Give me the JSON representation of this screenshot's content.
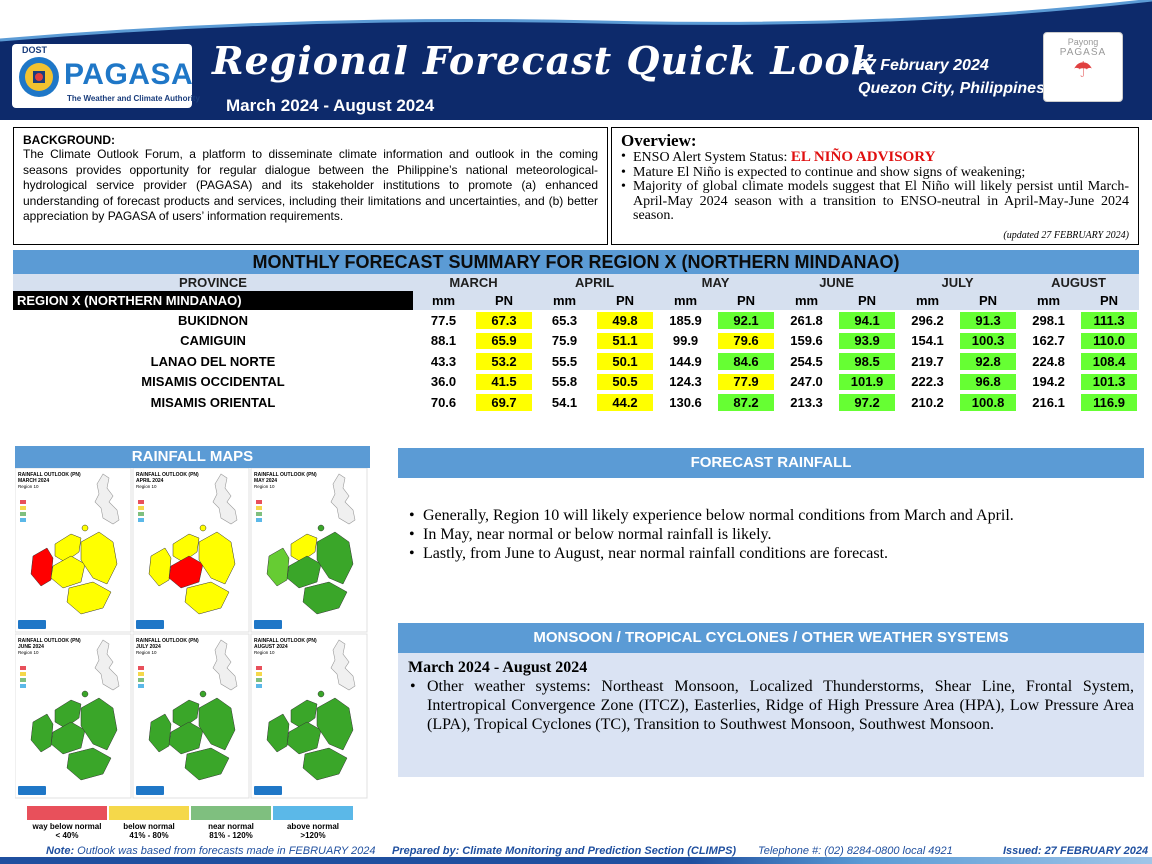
{
  "header": {
    "agency_short": "DOST",
    "agency": "PAGASA",
    "agency_tagline": "The Weather and Climate Authority",
    "title": "Regional Forecast Quick Look",
    "period": "March 2024 - August 2024",
    "issue_date": "27 February 2024",
    "location": "Quezon City, Philippines",
    "payong_line1": "Payong",
    "payong_line2": "PAGASA"
  },
  "background": {
    "heading": "BACKGROUND:",
    "text": "The Climate Outlook Forum, a platform to disseminate climate information and outlook in the coming seasons provides opportunity for regular dialogue between the Philippine’s national meteorological-hydrological service provider (PAGASA) and its stakeholder institutions to promote (a) enhanced understanding of forecast products and services, including their limitations and uncertainties, and (b) better appreciation by PAGASA of users’ information requirements."
  },
  "overview": {
    "heading": "Overview:",
    "enso_label": "ENSO Alert System Status: ",
    "enso_status": "EL NIÑO ADVISORY",
    "bullet2": "Mature El Niño is expected to continue and show signs of weakening;",
    "bullet3": "Majority of global climate models suggest that El Niño will likely persist until March-April-May 2024 season with a transition to ENSO-neutral in April-May-June 2024 season.",
    "updated": "(updated 27 FEBRUARY 2024)"
  },
  "forecast_table": {
    "title": "MONTHLY FORECAST SUMMARY FOR REGION X (NORTHERN MINDANAO)",
    "province_header": "PROVINCE",
    "region_label": "REGION X (NORTHERN MINDANAO)",
    "months": [
      "MARCH",
      "APRIL",
      "MAY",
      "JUNE",
      "JULY",
      "AUGUST"
    ],
    "sub_mm": "mm",
    "sub_pn": "PN",
    "rows": [
      {
        "province": "BUKIDNON",
        "values": [
          "77.5",
          "67.3",
          "65.3",
          "49.8",
          "185.9",
          "92.1",
          "261.8",
          "94.1",
          "296.2",
          "91.3",
          "298.1",
          "111.3"
        ]
      },
      {
        "province": "CAMIGUIN",
        "values": [
          "88.1",
          "65.9",
          "75.9",
          "51.1",
          "99.9",
          "79.6",
          "159.6",
          "93.9",
          "154.1",
          "100.3",
          "162.7",
          "110.0"
        ]
      },
      {
        "province": "LANAO DEL NORTE",
        "values": [
          "43.3",
          "53.2",
          "55.5",
          "50.1",
          "144.9",
          "84.6",
          "254.5",
          "98.5",
          "219.7",
          "92.8",
          "224.8",
          "108.4"
        ]
      },
      {
        "province": "MISAMIS OCCIDENTAL",
        "values": [
          "36.0",
          "41.5",
          "55.8",
          "50.5",
          "124.3",
          "77.9",
          "247.0",
          "101.9",
          "222.3",
          "96.8",
          "194.2",
          "101.3"
        ]
      },
      {
        "province": "MISAMIS ORIENTAL",
        "values": [
          "70.6",
          "69.7",
          "54.1",
          "44.2",
          "130.6",
          "87.2",
          "213.3",
          "97.2",
          "210.2",
          "100.8",
          "216.1",
          "116.9"
        ]
      }
    ],
    "pn_colors": {
      "below_normal": "#ffff00",
      "near_normal": "#66ff33"
    }
  },
  "rainfall_maps": {
    "title": "RAINFALL MAPS",
    "panels": [
      {
        "caption": "RAINFALL OUTLOOK (PN)",
        "month": "MARCH 2024"
      },
      {
        "caption": "RAINFALL OUTLOOK (PN)",
        "month": "APRIL 2024"
      },
      {
        "caption": "RAINFALL OUTLOOK (PN)",
        "month": "MAY 2024"
      },
      {
        "caption": "RAINFALL OUTLOOK (PN)",
        "month": "JUNE 2024"
      },
      {
        "caption": "RAINFALL OUTLOOK (PN)",
        "month": "JULY 2024"
      },
      {
        "caption": "RAINFALL OUTLOOK (PN)",
        "month": "AUGUST 2024"
      }
    ],
    "region_label": "Region 10",
    "legend": [
      {
        "label": "way below normal",
        "range": "< 40%",
        "color": "#e8505b"
      },
      {
        "label": "below normal",
        "range": "41% - 80%",
        "color": "#f5d84a"
      },
      {
        "label": "near normal",
        "range": "81% - 120%",
        "color": "#7fbf7f"
      },
      {
        "label": "above normal",
        "range": ">120%",
        "color": "#5bb8e8"
      }
    ]
  },
  "forecast_rainfall": {
    "title": "FORECAST RAINFALL",
    "bullets": [
      "Generally, Region 10 will likely experience below normal conditions from March and April.",
      "In May, near normal or below normal rainfall is likely.",
      "Lastly, from June to August, near normal rainfall conditions are forecast."
    ]
  },
  "weather_systems": {
    "title": "MONSOON  / TROPICAL CYCLONES / OTHER WEATHER SYSTEMS",
    "period": "March 2024 - August 2024",
    "bullet": "Other weather systems: Northeast Monsoon, Localized Thunderstorms, Shear Line, Frontal System, Intertropical Convergence Zone (ITCZ), Easterlies, Ridge of High Pressure Area (HPA), Low Pressure Area (LPA), Tropical Cyclones (TC), Transition to Southwest Monsoon, Southwest Monsoon."
  },
  "footer": {
    "note_label": "Note:",
    "note": " Outlook was based from forecasts made in FEBRUARY 2024",
    "prepared": "Prepared by: Climate Monitoring and Prediction Section (CLIMPS)",
    "telephone": "Telephone #: (02) 8284-0800 local 4921",
    "issued": "Issued: 27 FEBRUARY 2024"
  },
  "colors": {
    "header_navy": "#0d2a6b",
    "accent_blue": "#5b9bd5",
    "advisory_red": "#e01010"
  }
}
